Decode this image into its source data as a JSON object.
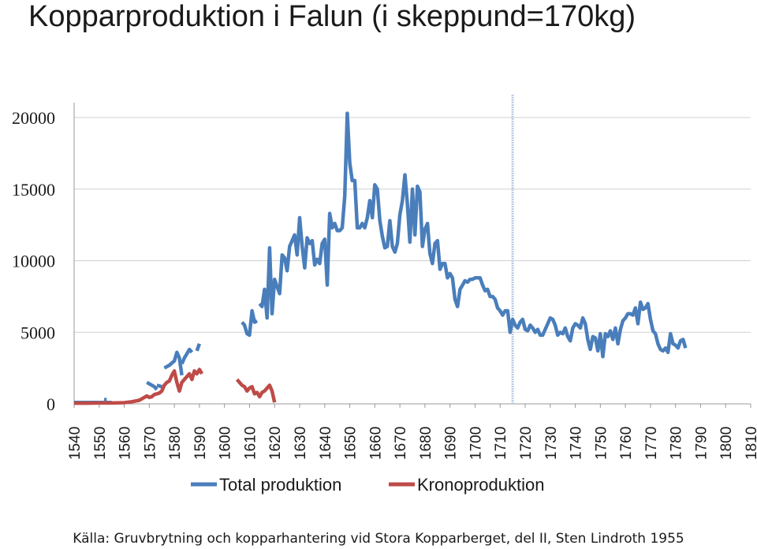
{
  "chart_data": {
    "type": "line",
    "title": "Kopparproduktion i Falun (i skeppund=170kg)",
    "source": "Källa: Gruvbrytning och kopparhantering vid Stora Kopparberget, del II, Sten Lindroth 1955",
    "xlabel": "",
    "ylabel": "",
    "xlim": [
      1540,
      1810
    ],
    "ylim": [
      0,
      20000
    ],
    "y_ticks": [
      0,
      5000,
      10000,
      15000,
      20000
    ],
    "x_ticks": [
      1540,
      1550,
      1560,
      1570,
      1580,
      1590,
      1600,
      1610,
      1620,
      1630,
      1640,
      1650,
      1660,
      1670,
      1680,
      1690,
      1700,
      1710,
      1720,
      1730,
      1740,
      1750,
      1760,
      1770,
      1780,
      1790,
      1800,
      1810
    ],
    "grid": "horizontal",
    "legend_position": "bottom",
    "reference_line_x": 1715,
    "colors": {
      "total": "#4a7ebb",
      "krono": "#be4b48",
      "reference": "#b9cde5",
      "grid": "#d0d0d0"
    },
    "series": [
      {
        "name": "Total produktion",
        "key": "total",
        "segments": [
          [
            [
              1540,
              100
            ],
            [
              1543,
              100
            ],
            [
              1546,
              100
            ],
            [
              1549,
              100
            ],
            [
              1552,
              100
            ],
            [
              1555,
              100
            ]
          ],
          [
            [
              1552,
              300
            ],
            [
              1553,
              300
            ]
          ],
          [
            [
              1569,
              1500
            ],
            [
              1572,
              1200
            ],
            [
              1573,
              1000
            ]
          ],
          [
            [
              1573,
              1300
            ],
            [
              1575,
              1200
            ]
          ],
          [
            [
              1576,
              2500
            ],
            [
              1578,
              2700
            ],
            [
              1580,
              3000
            ],
            [
              1581,
              3600
            ],
            [
              1582,
              3200
            ],
            [
              1583,
              2000
            ]
          ],
          [
            [
              1583,
              2800
            ],
            [
              1584,
              3200
            ],
            [
              1585,
              3500
            ],
            [
              1586,
              3800
            ],
            [
              1587,
              3600
            ]
          ],
          [
            [
              1589,
              3700
            ],
            [
              1590,
              4200
            ]
          ],
          [
            [
              1607,
              5700
            ],
            [
              1608,
              5500
            ],
            [
              1609,
              4900
            ],
            [
              1610,
              4800
            ],
            [
              1611,
              6500
            ],
            [
              1612,
              5700
            ],
            [
              1613,
              5800
            ]
          ],
          [
            [
              1614,
              7000
            ],
            [
              1615,
              6800
            ],
            [
              1616,
              8000
            ],
            [
              1617,
              6000
            ],
            [
              1618,
              10900
            ],
            [
              1619,
              6300
            ],
            [
              1620,
              8700
            ],
            [
              1621,
              8200
            ],
            [
              1622,
              7700
            ],
            [
              1623,
              10400
            ],
            [
              1624,
              10200
            ],
            [
              1625,
              9300
            ],
            [
              1626,
              11000
            ],
            [
              1627,
              11400
            ],
            [
              1628,
              11800
            ],
            [
              1629,
              10400
            ],
            [
              1630,
              13000
            ],
            [
              1631,
              11000
            ],
            [
              1632,
              9500
            ],
            [
              1633,
              11600
            ],
            [
              1634,
              11200
            ],
            [
              1635,
              11400
            ],
            [
              1636,
              9700
            ],
            [
              1637,
              10100
            ],
            [
              1638,
              9800
            ],
            [
              1639,
              11200
            ],
            [
              1640,
              11500
            ],
            [
              1641,
              8300
            ],
            [
              1642,
              13300
            ],
            [
              1643,
              12300
            ],
            [
              1644,
              12600
            ],
            [
              1645,
              12100
            ],
            [
              1646,
              12100
            ],
            [
              1647,
              12300
            ],
            [
              1648,
              14500
            ],
            [
              1649,
              20300
            ],
            [
              1650,
              16800
            ],
            [
              1651,
              15600
            ],
            [
              1652,
              15600
            ],
            [
              1653,
              12300
            ],
            [
              1654,
              12300
            ],
            [
              1655,
              12600
            ],
            [
              1656,
              12300
            ],
            [
              1657,
              13000
            ],
            [
              1658,
              14200
            ],
            [
              1659,
              13000
            ],
            [
              1660,
              15300
            ],
            [
              1661,
              15000
            ],
            [
              1662,
              12800
            ],
            [
              1663,
              11700
            ],
            [
              1664,
              10900
            ],
            [
              1665,
              11000
            ],
            [
              1666,
              12800
            ],
            [
              1667,
              11000
            ],
            [
              1668,
              10600
            ],
            [
              1669,
              11200
            ],
            [
              1670,
              13200
            ],
            [
              1671,
              14200
            ],
            [
              1672,
              16000
            ],
            [
              1673,
              14000
            ],
            [
              1674,
              11300
            ],
            [
              1675,
              15000
            ],
            [
              1676,
              11800
            ],
            [
              1677,
              15200
            ],
            [
              1678,
              14800
            ],
            [
              1679,
              11000
            ],
            [
              1680,
              12200
            ],
            [
              1681,
              12600
            ],
            [
              1682,
              10500
            ],
            [
              1683,
              9800
            ],
            [
              1684,
              11200
            ],
            [
              1685,
              11400
            ],
            [
              1686,
              9400
            ],
            [
              1687,
              9800
            ],
            [
              1688,
              9800
            ],
            [
              1689,
              8800
            ],
            [
              1690,
              9100
            ],
            [
              1691,
              8800
            ],
            [
              1692,
              7300
            ],
            [
              1693,
              6800
            ],
            [
              1694,
              8000
            ],
            [
              1695,
              8300
            ],
            [
              1696,
              8600
            ],
            [
              1697,
              8500
            ],
            [
              1698,
              8700
            ],
            [
              1699,
              8700
            ],
            [
              1700,
              8800
            ],
            [
              1701,
              8800
            ],
            [
              1702,
              8800
            ],
            [
              1703,
              8300
            ],
            [
              1704,
              7900
            ],
            [
              1705,
              8000
            ],
            [
              1706,
              7500
            ],
            [
              1707,
              7500
            ],
            [
              1708,
              7300
            ],
            [
              1709,
              6700
            ],
            [
              1710,
              6500
            ],
            [
              1711,
              6200
            ],
            [
              1712,
              6500
            ],
            [
              1713,
              6500
            ],
            [
              1714,
              5000
            ],
            [
              1715,
              5900
            ],
            [
              1716,
              5500
            ],
            [
              1717,
              5300
            ],
            [
              1718,
              5700
            ],
            [
              1719,
              5900
            ],
            [
              1720,
              5200
            ],
            [
              1721,
              5100
            ],
            [
              1722,
              5500
            ],
            [
              1723,
              5300
            ],
            [
              1724,
              5000
            ],
            [
              1725,
              5200
            ],
            [
              1726,
              4800
            ],
            [
              1727,
              4800
            ],
            [
              1728,
              5200
            ],
            [
              1729,
              5600
            ],
            [
              1730,
              6000
            ],
            [
              1731,
              5900
            ],
            [
              1732,
              5500
            ],
            [
              1733,
              4800
            ],
            [
              1734,
              5000
            ],
            [
              1735,
              4900
            ],
            [
              1736,
              5300
            ],
            [
              1737,
              4700
            ],
            [
              1738,
              4400
            ],
            [
              1739,
              5300
            ],
            [
              1740,
              5600
            ],
            [
              1741,
              5500
            ],
            [
              1742,
              5300
            ],
            [
              1743,
              6000
            ],
            [
              1744,
              5600
            ],
            [
              1745,
              4500
            ],
            [
              1746,
              3800
            ],
            [
              1747,
              4700
            ],
            [
              1748,
              4600
            ],
            [
              1749,
              3700
            ],
            [
              1750,
              4900
            ],
            [
              1751,
              3300
            ],
            [
              1752,
              4900
            ],
            [
              1753,
              4700
            ],
            [
              1754,
              5100
            ],
            [
              1755,
              4500
            ],
            [
              1756,
              5300
            ],
            [
              1757,
              4200
            ],
            [
              1758,
              5200
            ],
            [
              1759,
              5800
            ],
            [
              1760,
              6000
            ],
            [
              1761,
              6300
            ],
            [
              1762,
              6300
            ],
            [
              1763,
              6200
            ],
            [
              1764,
              6700
            ],
            [
              1765,
              5600
            ],
            [
              1766,
              7100
            ],
            [
              1767,
              6600
            ],
            [
              1768,
              6700
            ],
            [
              1769,
              7000
            ],
            [
              1770,
              5900
            ],
            [
              1771,
              5100
            ],
            [
              1772,
              4900
            ],
            [
              1773,
              4200
            ],
            [
              1774,
              3800
            ],
            [
              1775,
              3700
            ],
            [
              1776,
              3900
            ],
            [
              1777,
              3600
            ],
            [
              1778,
              4900
            ],
            [
              1779,
              4200
            ],
            [
              1780,
              4100
            ],
            [
              1781,
              3900
            ],
            [
              1782,
              4400
            ],
            [
              1783,
              4500
            ],
            [
              1784,
              3900
            ]
          ]
        ]
      },
      {
        "name": "Kronoproduktion",
        "key": "krono",
        "segments": [
          [
            [
              1540,
              50
            ],
            [
              1545,
              50
            ],
            [
              1550,
              60
            ],
            [
              1555,
              60
            ],
            [
              1560,
              80
            ],
            [
              1563,
              150
            ],
            [
              1566,
              250
            ],
            [
              1568,
              450
            ],
            [
              1569,
              550
            ],
            [
              1570,
              450
            ],
            [
              1571,
              500
            ],
            [
              1572,
              650
            ],
            [
              1573,
              700
            ],
            [
              1574,
              750
            ],
            [
              1575,
              900
            ],
            [
              1576,
              1300
            ],
            [
              1577,
              1500
            ],
            [
              1578,
              1600
            ],
            [
              1579,
              2000
            ],
            [
              1580,
              2300
            ],
            [
              1581,
              1500
            ],
            [
              1582,
              900
            ],
            [
              1583,
              1500
            ],
            [
              1584,
              1700
            ],
            [
              1585,
              1900
            ],
            [
              1586,
              2100
            ],
            [
              1587,
              1700
            ],
            [
              1588,
              2300
            ],
            [
              1589,
              2100
            ],
            [
              1590,
              2400
            ],
            [
              1591,
              2100
            ]
          ],
          [
            [
              1605,
              1700
            ],
            [
              1606,
              1500
            ],
            [
              1607,
              1300
            ],
            [
              1608,
              1200
            ],
            [
              1609,
              900
            ],
            [
              1610,
              1100
            ],
            [
              1611,
              1200
            ],
            [
              1612,
              700
            ],
            [
              1613,
              800
            ],
            [
              1614,
              500
            ],
            [
              1615,
              800
            ],
            [
              1616,
              900
            ],
            [
              1617,
              1100
            ],
            [
              1618,
              1300
            ],
            [
              1619,
              900
            ],
            [
              1620,
              100
            ]
          ]
        ]
      }
    ]
  }
}
